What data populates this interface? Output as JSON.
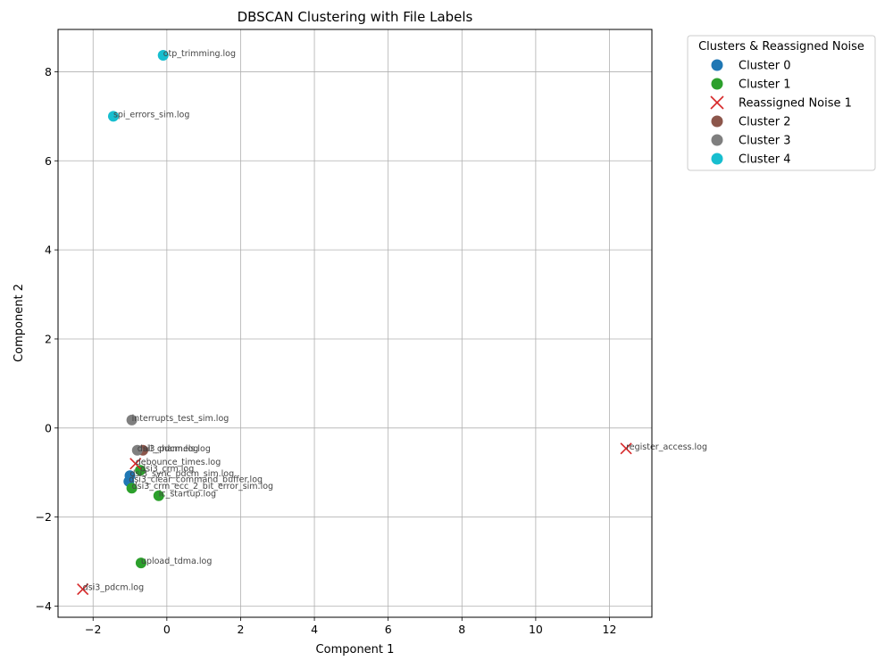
{
  "chart_data": {
    "type": "scatter",
    "title": "DBSCAN Clustering with File Labels",
    "xlabel": "Component 1",
    "ylabel": "Component 2",
    "xlim": [
      -2.95,
      13.15
    ],
    "ylim": [
      -4.25,
      8.95
    ],
    "xticks": [
      -2,
      0,
      2,
      4,
      6,
      8,
      10,
      12
    ],
    "yticks": [
      -4,
      -2,
      0,
      2,
      4,
      6,
      8
    ],
    "xtick_labels": [
      "−2",
      "0",
      "2",
      "4",
      "6",
      "8",
      "10",
      "12"
    ],
    "ytick_labels": [
      "−4",
      "−2",
      "0",
      "2",
      "4",
      "6",
      "8"
    ],
    "grid": true,
    "legend": {
      "title": "Clusters & Reassigned Noise",
      "placement": "outside-top-right"
    },
    "series": [
      {
        "name": "Cluster 0",
        "color": "#1f77b4",
        "marker": "circle",
        "points": [
          {
            "x": -1.0,
            "y": -1.07,
            "label": "dsi3_sync_pdcm_sim.log"
          },
          {
            "x": -1.03,
            "y": -1.2,
            "label": "dsi3_clear_command_buffer.log"
          }
        ]
      },
      {
        "name": "Cluster 1",
        "color": "#2ca02c",
        "marker": "circle",
        "points": [
          {
            "x": -0.72,
            "y": -0.95,
            "label": "dsi3_crm.log"
          },
          {
            "x": -0.95,
            "y": -1.35,
            "label": "dsi3_crm_ecc_2_bit_error_sim.log"
          },
          {
            "x": -0.22,
            "y": -1.52,
            "label": "ic_startup.log"
          },
          {
            "x": -0.7,
            "y": -3.03,
            "label": "upload_tdma.log"
          }
        ]
      },
      {
        "name": "Reassigned Noise 1",
        "color": "#d62728",
        "marker": "x",
        "points": [
          {
            "x": -0.85,
            "y": -0.8,
            "label": "debounce_times.log"
          },
          {
            "x": 12.45,
            "y": -0.46,
            "label": "register_access.log"
          },
          {
            "x": -2.28,
            "y": -3.62,
            "label": "dsi3_pdcm.log"
          }
        ]
      },
      {
        "name": "Cluster 2",
        "color": "#8c564b",
        "marker": "circle",
        "points": [
          {
            "x": -0.65,
            "y": -0.5,
            "label": "all_channels.log"
          }
        ]
      },
      {
        "name": "Cluster 3",
        "color": "#7f7f7f",
        "marker": "circle",
        "points": [
          {
            "x": -0.95,
            "y": 0.18,
            "label": "interrupts_test_sim.log"
          },
          {
            "x": -0.8,
            "y": -0.5,
            "label": "dsi3_pdcm.log"
          }
        ]
      },
      {
        "name": "Cluster 4",
        "color": "#17becf",
        "marker": "circle",
        "points": [
          {
            "x": -0.1,
            "y": 8.37,
            "label": "otp_trimming.log"
          },
          {
            "x": -1.45,
            "y": 7.0,
            "label": "spi_errors_sim.log"
          }
        ]
      }
    ]
  }
}
